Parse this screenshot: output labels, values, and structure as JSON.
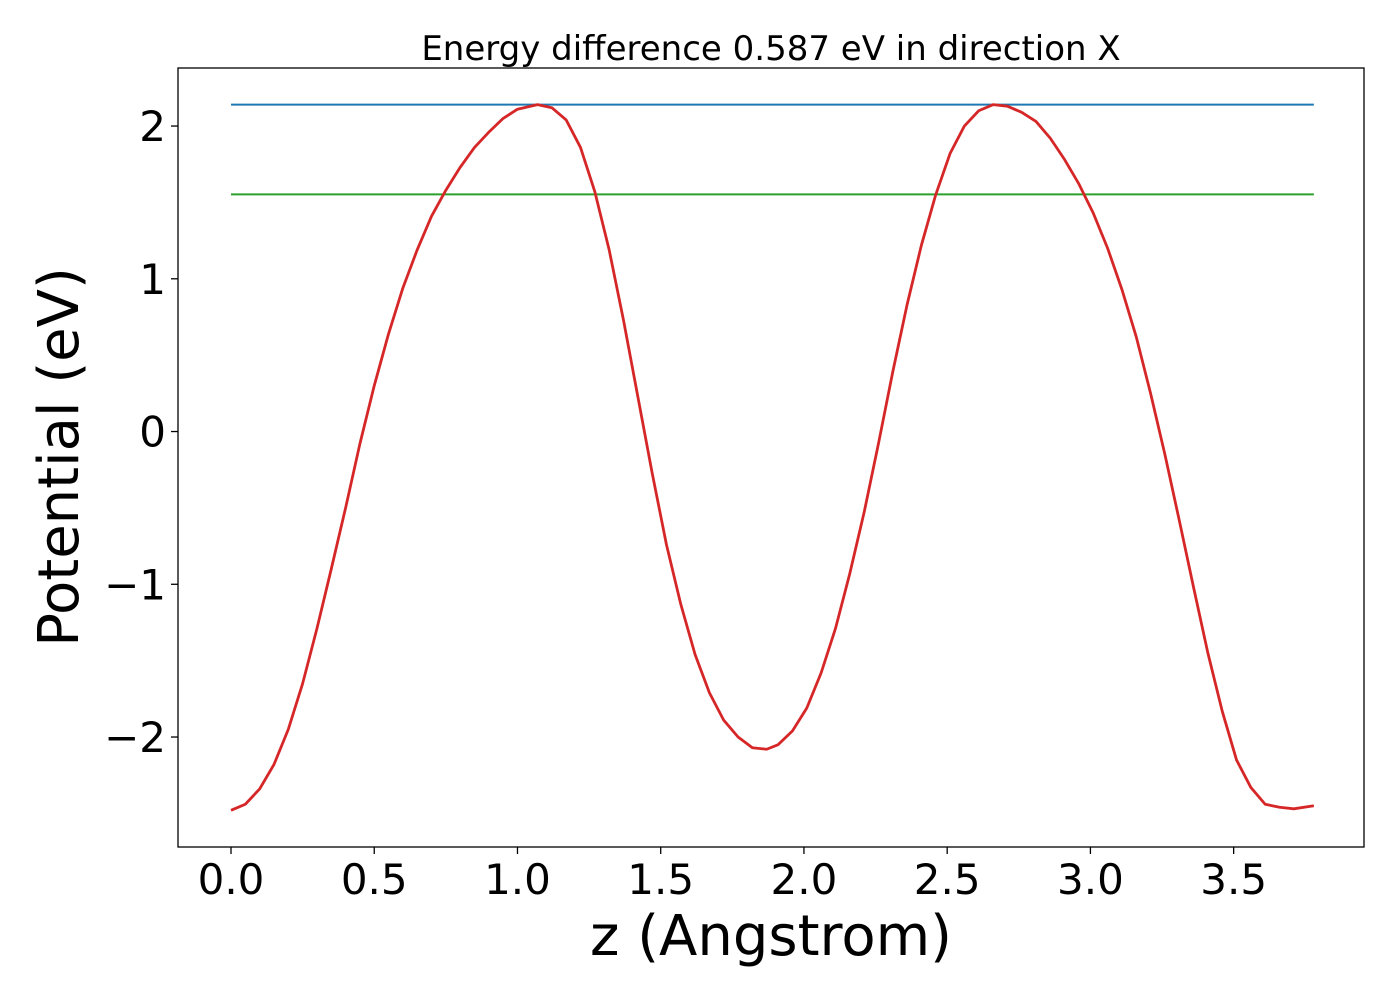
{
  "chart_data": {
    "type": "line",
    "title": "Energy difference 0.587 eV in direction X",
    "xlabel": "z (Angstrom)",
    "ylabel": "Potential (eV)",
    "xlim": [
      -0.185,
      3.955
    ],
    "ylim": [
      -2.72,
      2.38
    ],
    "xticks": [
      0.0,
      0.5,
      1.0,
      1.5,
      2.0,
      2.5,
      3.0,
      3.5
    ],
    "xtick_labels": [
      "0.0",
      "0.5",
      "1.0",
      "1.5",
      "2.0",
      "2.5",
      "3.0",
      "3.5"
    ],
    "yticks": [
      -2,
      -1,
      0,
      1,
      2
    ],
    "ytick_labels": [
      "−2",
      "−1",
      "0",
      "1",
      "2"
    ],
    "grid": false,
    "hlines": [
      {
        "y": 2.14,
        "x_start": 0.0,
        "x_end": 3.78,
        "color": "#1f77b4"
      },
      {
        "y": 1.553,
        "x_start": 0.0,
        "x_end": 3.78,
        "color": "#2ca02c"
      }
    ],
    "series": [
      {
        "color": "#d62728",
        "x": [
          0.0,
          0.05,
          0.1,
          0.15,
          0.2,
          0.25,
          0.3,
          0.35,
          0.4,
          0.45,
          0.5,
          0.55,
          0.6,
          0.65,
          0.7,
          0.75,
          0.8,
          0.85,
          0.9,
          0.95,
          1.0,
          1.07,
          1.12,
          1.17,
          1.22,
          1.27,
          1.32,
          1.37,
          1.42,
          1.47,
          1.52,
          1.57,
          1.62,
          1.67,
          1.72,
          1.77,
          1.82,
          1.87,
          1.91,
          1.96,
          2.01,
          2.06,
          2.11,
          2.16,
          2.21,
          2.26,
          2.31,
          2.36,
          2.41,
          2.46,
          2.51,
          2.56,
          2.61,
          2.66,
          2.71,
          2.76,
          2.81,
          2.86,
          2.91,
          2.96,
          3.01,
          3.06,
          3.11,
          3.16,
          3.21,
          3.26,
          3.31,
          3.36,
          3.41,
          3.46,
          3.51,
          3.56,
          3.61,
          3.66,
          3.71,
          3.78
        ],
        "y": [
          -2.48,
          -2.44,
          -2.34,
          -2.18,
          -1.95,
          -1.65,
          -1.29,
          -0.9,
          -0.5,
          -0.08,
          0.3,
          0.64,
          0.94,
          1.19,
          1.41,
          1.58,
          1.73,
          1.86,
          1.96,
          2.05,
          2.11,
          2.14,
          2.12,
          2.04,
          1.86,
          1.57,
          1.19,
          0.73,
          0.23,
          -0.27,
          -0.74,
          -1.13,
          -1.46,
          -1.71,
          -1.89,
          -2.0,
          -2.07,
          -2.08,
          -2.05,
          -1.96,
          -1.81,
          -1.58,
          -1.29,
          -0.93,
          -0.53,
          -0.08,
          0.39,
          0.83,
          1.22,
          1.55,
          1.82,
          2.0,
          2.1,
          2.14,
          2.13,
          2.09,
          2.03,
          1.92,
          1.78,
          1.62,
          1.43,
          1.2,
          0.93,
          0.62,
          0.25,
          -0.15,
          -0.58,
          -1.02,
          -1.45,
          -1.83,
          -2.15,
          -2.33,
          -2.44,
          -2.46,
          -2.47,
          -2.45
        ]
      }
    ]
  }
}
